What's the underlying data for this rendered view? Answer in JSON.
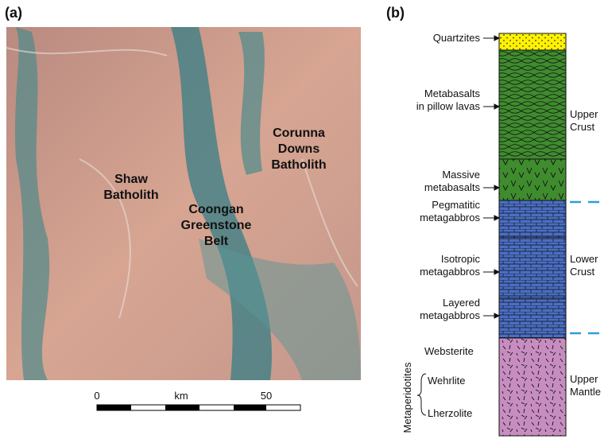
{
  "panel_a": {
    "label": "(a)",
    "map_labels": [
      [
        "Shaw",
        "Batholith"
      ],
      [
        "Coongan",
        "Greenstone",
        "Belt"
      ],
      [
        "Corunna",
        "Downs",
        "Batholith"
      ]
    ],
    "scale": {
      "start": "0",
      "unit": "km",
      "end": "50"
    }
  },
  "panel_b": {
    "label": "(b)",
    "layers": [
      [
        "Quartzites"
      ],
      [
        "Metabasalts",
        "in pillow lavas"
      ],
      [
        "Massive",
        "metabasalts"
      ],
      [
        "Pegmatitic",
        "metagabbros"
      ],
      [
        "Isotropic",
        "metagabbros"
      ],
      [
        "Layered",
        "metagabbros"
      ]
    ],
    "mantle_group": "Metaperidotites",
    "mantle_layers": [
      "Websterite",
      "Wehrlite",
      "Lherzolite"
    ],
    "zones": [
      [
        "Upper",
        "Crust"
      ],
      [
        "Lower",
        "Crust"
      ],
      [
        "Upper",
        "Mantle"
      ]
    ]
  }
}
